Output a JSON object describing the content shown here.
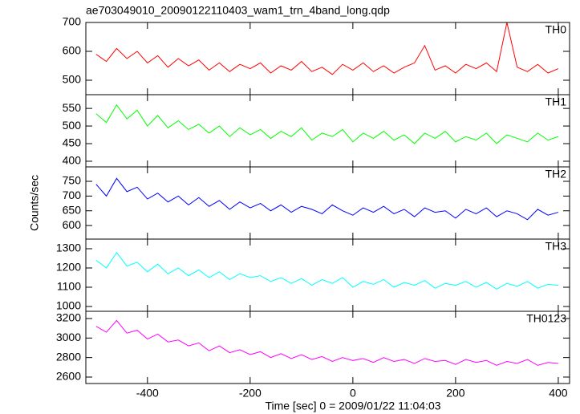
{
  "chart_data": [
    {
      "type": "line",
      "title": "ae703049010_20090122110403_wam1_trn_4band_long.qdp",
      "annotation": "TH0",
      "color": "#ff0000",
      "xlim": [
        -520,
        422
      ],
      "ylim": [
        450,
        700
      ],
      "yticks": [
        500,
        600,
        700
      ],
      "x": [
        -500,
        -480,
        -460,
        -440,
        -420,
        -400,
        -380,
        -360,
        -340,
        -320,
        -300,
        -280,
        -260,
        -240,
        -220,
        -200,
        -180,
        -160,
        -140,
        -120,
        -100,
        -80,
        -60,
        -40,
        -20,
        0,
        20,
        40,
        60,
        80,
        100,
        120,
        140,
        160,
        180,
        200,
        220,
        240,
        260,
        280,
        300,
        320,
        340,
        360,
        380,
        400
      ],
      "values": [
        590,
        565,
        610,
        575,
        600,
        560,
        585,
        545,
        575,
        550,
        570,
        535,
        560,
        530,
        555,
        540,
        560,
        525,
        550,
        535,
        565,
        530,
        545,
        520,
        555,
        535,
        560,
        530,
        550,
        525,
        545,
        560,
        620,
        535,
        550,
        525,
        555,
        540,
        560,
        530,
        700,
        545,
        530,
        555,
        525,
        540
      ]
    },
    {
      "type": "line",
      "annotation": "TH1",
      "color": "#00ff00",
      "xlim": [
        -520,
        422
      ],
      "ylim": [
        384,
        589
      ],
      "yticks": [
        400,
        450,
        500,
        550
      ],
      "x": [
        -500,
        -480,
        -460,
        -440,
        -420,
        -400,
        -380,
        -360,
        -340,
        -320,
        -300,
        -280,
        -260,
        -240,
        -220,
        -200,
        -180,
        -160,
        -140,
        -120,
        -100,
        -80,
        -60,
        -40,
        -20,
        0,
        20,
        40,
        60,
        80,
        100,
        120,
        140,
        160,
        180,
        200,
        220,
        240,
        260,
        280,
        300,
        320,
        340,
        360,
        380,
        400
      ],
      "values": [
        535,
        510,
        560,
        520,
        545,
        500,
        530,
        495,
        515,
        490,
        505,
        480,
        500,
        470,
        495,
        475,
        490,
        465,
        485,
        470,
        495,
        460,
        480,
        470,
        490,
        455,
        480,
        465,
        485,
        460,
        475,
        450,
        480,
        465,
        485,
        455,
        470,
        460,
        480,
        450,
        475,
        465,
        455,
        480,
        460,
        470
      ]
    },
    {
      "type": "line",
      "annotation": "TH2",
      "ylabel": "Counts/sec",
      "color": "#0000ff",
      "xlim": [
        -520,
        422
      ],
      "ylim": [
        554,
        799
      ],
      "yticks": [
        600,
        650,
        700,
        750
      ],
      "x": [
        -500,
        -480,
        -460,
        -440,
        -420,
        -400,
        -380,
        -360,
        -340,
        -320,
        -300,
        -280,
        -260,
        -240,
        -220,
        -200,
        -180,
        -160,
        -140,
        -120,
        -100,
        -80,
        -60,
        -40,
        -20,
        0,
        20,
        40,
        60,
        80,
        100,
        120,
        140,
        160,
        180,
        200,
        220,
        240,
        260,
        280,
        300,
        320,
        340,
        360,
        380,
        400
      ],
      "values": [
        740,
        700,
        760,
        715,
        730,
        690,
        710,
        680,
        700,
        670,
        695,
        665,
        685,
        655,
        680,
        660,
        675,
        650,
        670,
        645,
        665,
        655,
        640,
        670,
        650,
        635,
        660,
        645,
        665,
        640,
        655,
        630,
        660,
        645,
        650,
        625,
        655,
        640,
        660,
        630,
        650,
        640,
        620,
        655,
        635,
        645
      ]
    },
    {
      "type": "line",
      "annotation": "TH3",
      "color": "#00ffff",
      "xlim": [
        -520,
        422
      ],
      "ylim": [
        975,
        1350
      ],
      "yticks": [
        1000,
        1100,
        1200,
        1300
      ],
      "x": [
        -500,
        -480,
        -460,
        -440,
        -420,
        -400,
        -380,
        -360,
        -340,
        -320,
        -300,
        -280,
        -260,
        -240,
        -220,
        -200,
        -180,
        -160,
        -140,
        -120,
        -100,
        -80,
        -60,
        -40,
        -20,
        0,
        20,
        40,
        60,
        80,
        100,
        120,
        140,
        160,
        180,
        200,
        220,
        240,
        260,
        280,
        300,
        320,
        340,
        360,
        380,
        400
      ],
      "values": [
        1240,
        1200,
        1280,
        1210,
        1230,
        1180,
        1220,
        1170,
        1200,
        1160,
        1190,
        1150,
        1180,
        1140,
        1170,
        1150,
        1160,
        1130,
        1150,
        1120,
        1145,
        1110,
        1140,
        1120,
        1150,
        1100,
        1130,
        1115,
        1140,
        1100,
        1125,
        1110,
        1135,
        1095,
        1120,
        1110,
        1130,
        1100,
        1125,
        1090,
        1120,
        1105,
        1130,
        1095,
        1115,
        1110
      ]
    },
    {
      "type": "line",
      "annotation": "TH0123",
      "xlabel": "Time [sec] 0 = 2009/01/22 11:04:03",
      "color": "#ff00ff",
      "xlim": [
        -520,
        422
      ],
      "xticks": [
        -400,
        -200,
        0,
        200,
        400
      ],
      "ylim": [
        2534,
        3274
      ],
      "yticks": [
        2600,
        2800,
        3000,
        3200
      ],
      "x": [
        -500,
        -480,
        -460,
        -440,
        -420,
        -400,
        -380,
        -360,
        -340,
        -320,
        -300,
        -280,
        -260,
        -240,
        -220,
        -200,
        -180,
        -160,
        -140,
        -120,
        -100,
        -80,
        -60,
        -40,
        -20,
        0,
        20,
        40,
        60,
        80,
        100,
        120,
        140,
        160,
        180,
        200,
        220,
        240,
        260,
        280,
        300,
        320,
        340,
        360,
        380,
        400
      ],
      "values": [
        3120,
        3060,
        3180,
        3050,
        3080,
        2990,
        3040,
        2960,
        2980,
        2920,
        2950,
        2870,
        2920,
        2850,
        2880,
        2830,
        2860,
        2800,
        2840,
        2790,
        2830,
        2780,
        2810,
        2760,
        2800,
        2770,
        2790,
        2750,
        2800,
        2760,
        2780,
        2740,
        2790,
        2760,
        2770,
        2730,
        2780,
        2750,
        2770,
        2720,
        2760,
        2740,
        2780,
        2720,
        2750,
        2740
      ]
    }
  ]
}
